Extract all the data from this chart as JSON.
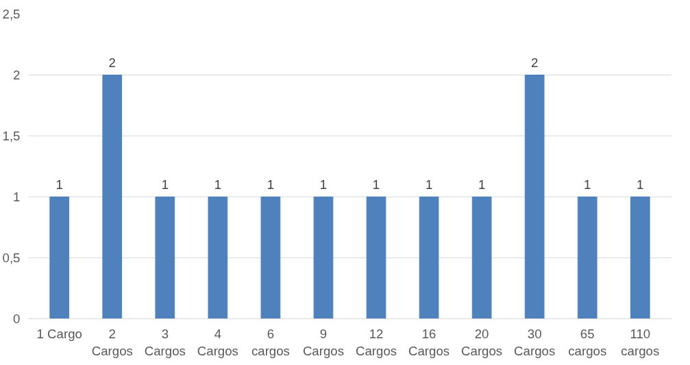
{
  "chart_data": {
    "type": "bar",
    "categories": [
      "1 Cargo",
      "2 Cargos",
      "3 Cargos",
      "4 Cargos",
      "6 cargos",
      "9 Cargos",
      "12 Cargos",
      "16 Cargos",
      "20 Cargos",
      "30 Cargos",
      "65 cargos",
      "110 cargos"
    ],
    "values": [
      1,
      2,
      1,
      1,
      1,
      1,
      1,
      1,
      1,
      2,
      1,
      1
    ],
    "color": "#4f81bd",
    "ylim": [
      0,
      2.5
    ],
    "yticks": [
      0,
      {
        "value": 0.5,
        "label": "0,5"
      },
      1,
      {
        "value": 1.5,
        "label": "1,5"
      },
      2,
      {
        "value": 2.5,
        "label": "2,5"
      }
    ],
    "grid": "y",
    "data_labels": true
  }
}
